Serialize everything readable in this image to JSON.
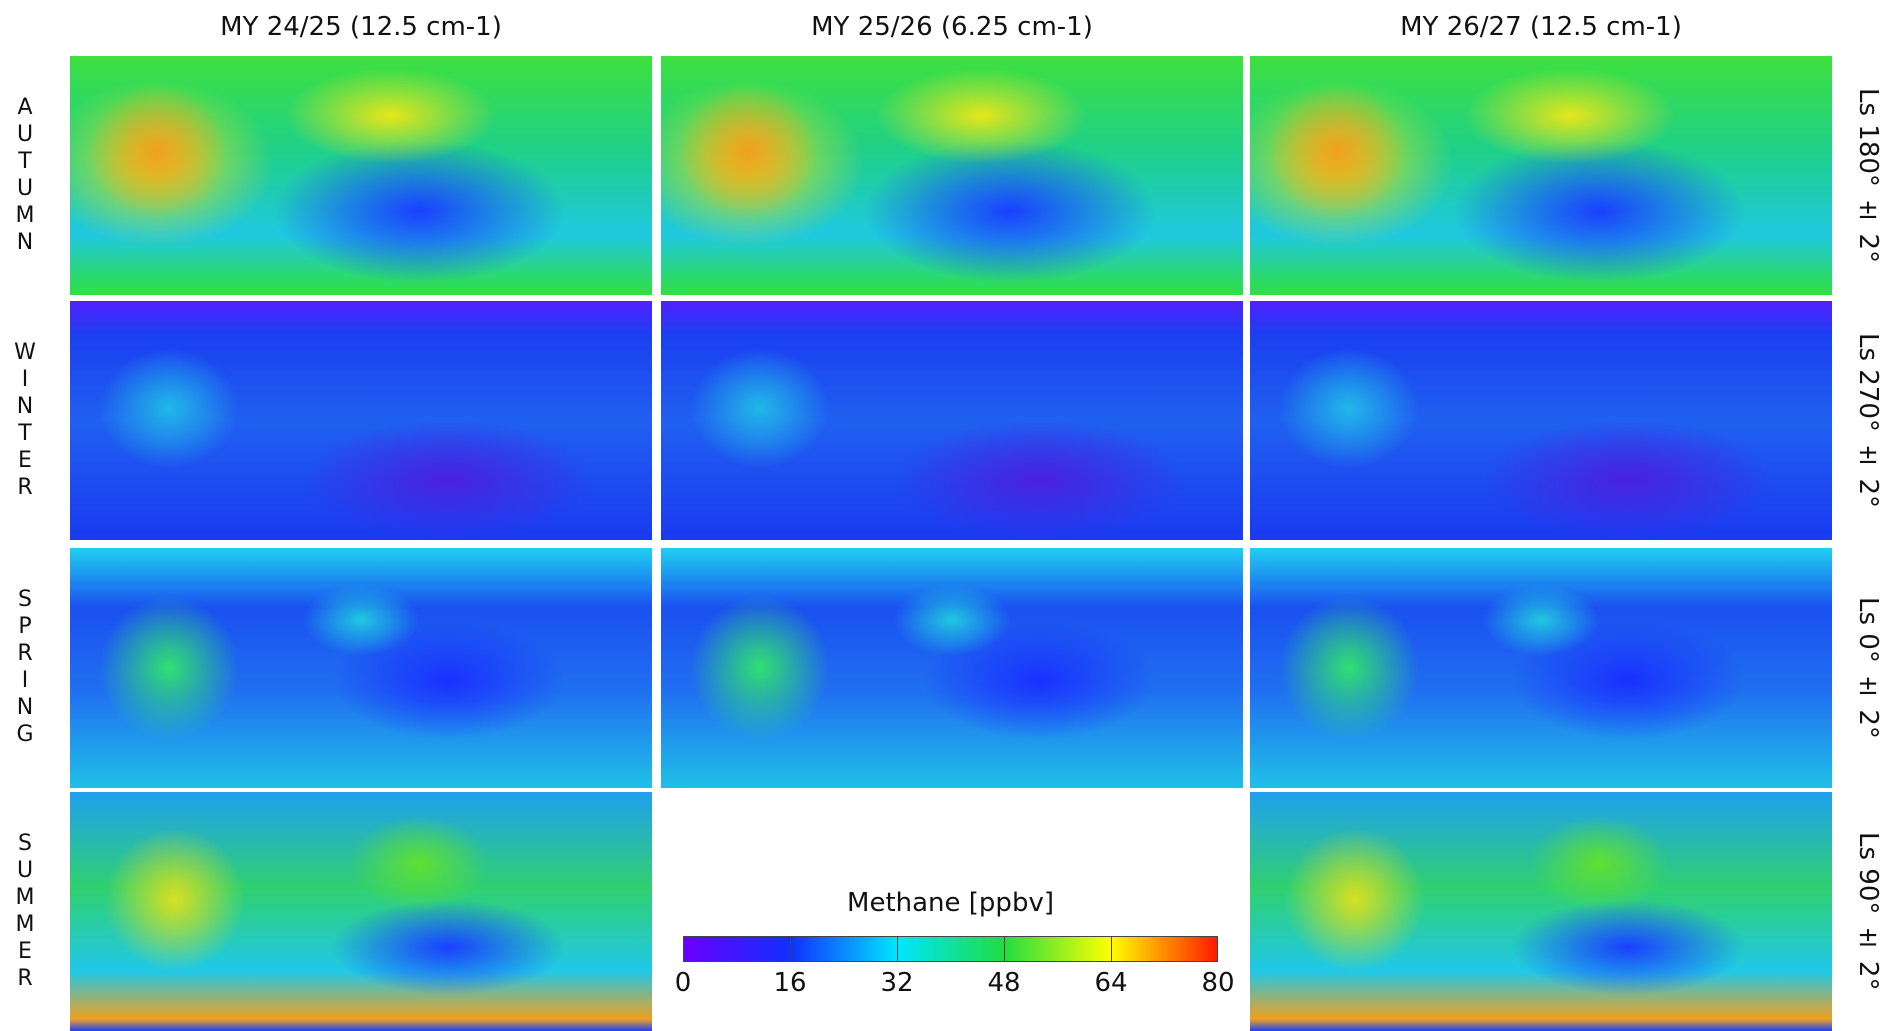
{
  "columns": [
    "MY 24/25 (12.5 cm-1)",
    "MY 25/26 (6.25 cm-1)",
    "MY 26/27 (12.5 cm-1)"
  ],
  "rows": [
    {
      "season": "AUTUMN",
      "ls": "Ls 180° ± 2°"
    },
    {
      "season": "WINTER",
      "ls": "Ls 270° ± 2°"
    },
    {
      "season": "SPRING",
      "ls": "Ls 0° ± 2°"
    },
    {
      "season": "SUMMER",
      "ls": "Ls 90° ± 2°"
    }
  ],
  "colorbar": {
    "title": "Methane [ppbv]",
    "lim": [
      0,
      80
    ],
    "ticks": [
      0,
      16,
      32,
      48,
      64,
      80
    ]
  }
}
